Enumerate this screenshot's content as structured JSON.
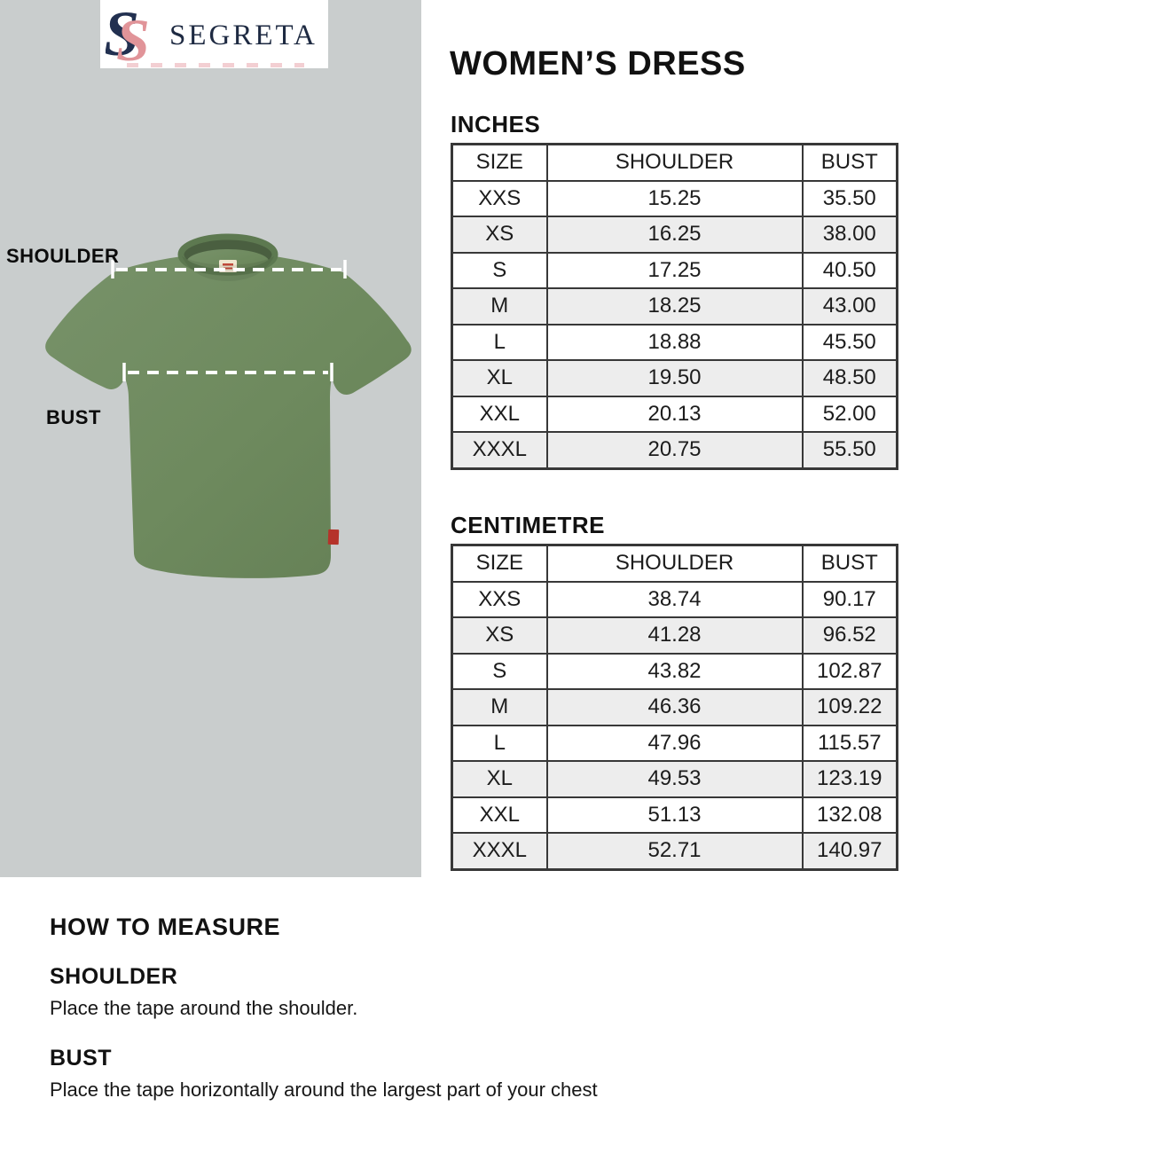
{
  "page_title": "WOMEN’S DRESS",
  "logo": {
    "brand": "SEGRETA"
  },
  "diagram": {
    "shoulder_label": "SHOULDER",
    "bust_label": "BUST"
  },
  "tables": [
    {
      "unit_label": "INCHES",
      "columns": [
        "SIZE",
        "SHOULDER",
        "BUST"
      ],
      "rows": [
        [
          "XXS",
          "15.25",
          "35.50"
        ],
        [
          "XS",
          "16.25",
          "38.00"
        ],
        [
          "S",
          "17.25",
          "40.50"
        ],
        [
          "M",
          "18.25",
          "43.00"
        ],
        [
          "L",
          "18.88",
          "45.50"
        ],
        [
          "XL",
          "19.50",
          "48.50"
        ],
        [
          "XXL",
          "20.13",
          "52.00"
        ],
        [
          "XXXL",
          "20.75",
          "55.50"
        ]
      ]
    },
    {
      "unit_label": "CENTIMETRE",
      "columns": [
        "SIZE",
        "SHOULDER",
        "BUST"
      ],
      "rows": [
        [
          "XXS",
          "38.74",
          "90.17"
        ],
        [
          "XS",
          "41.28",
          "96.52"
        ],
        [
          "S",
          "43.82",
          "102.87"
        ],
        [
          "M",
          "46.36",
          "109.22"
        ],
        [
          "L",
          "47.96",
          "115.57"
        ],
        [
          "XL",
          "49.53",
          "123.19"
        ],
        [
          "XXL",
          "51.13",
          "132.08"
        ],
        [
          "XXXL",
          "52.71",
          "140.97"
        ]
      ]
    }
  ],
  "how_to_measure": {
    "title": "HOW TO MEASURE",
    "sections": [
      {
        "heading": "SHOULDER",
        "text": "Place the tape around the shoulder."
      },
      {
        "heading": "BUST",
        "text": "Place the tape horizontally around the largest part of your chest"
      }
    ]
  },
  "colors": {
    "panel_gray": "#c9cdcd",
    "shirt_green": "#6e8a5e",
    "shirt_green_dark": "#5d7950",
    "shirt_opening": "#4a5f40",
    "logo_navy": "#1e2a42",
    "logo_pink": "#e19499",
    "row_alt": "#ededed",
    "table_border": "#383838",
    "tag_red": "#b5332a",
    "text_black": "#121212"
  }
}
